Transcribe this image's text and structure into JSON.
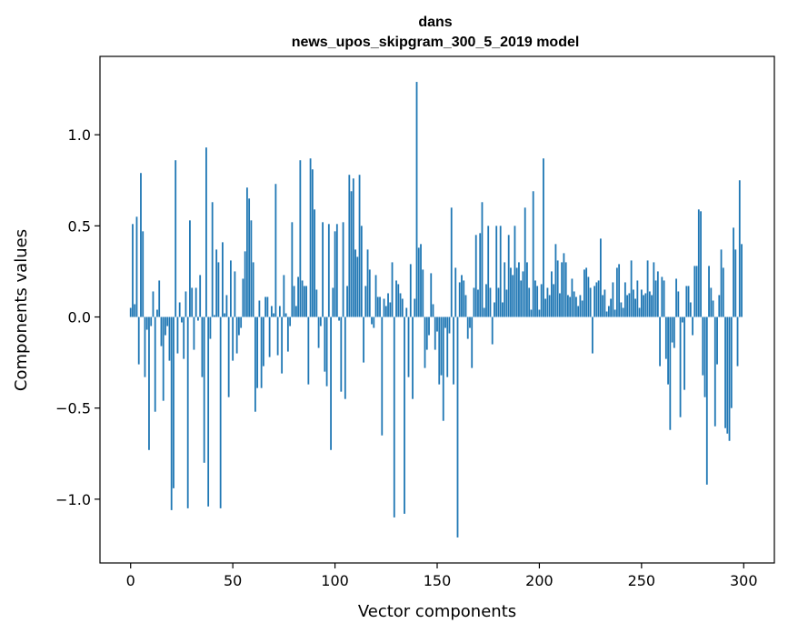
{
  "chart_data": {
    "type": "bar",
    "title": "dans",
    "subtitle": "news_upos_skipgram_300_5_2019 model",
    "xlabel": "Vector components",
    "ylabel": "Components values",
    "xlim": [
      -15,
      315
    ],
    "ylim": [
      -1.35,
      1.43
    ],
    "x_ticks": [
      0,
      50,
      100,
      150,
      200,
      250,
      300
    ],
    "x_tick_labels": [
      "0",
      "50",
      "100",
      "150",
      "200",
      "250",
      "300"
    ],
    "y_ticks": [
      -1.0,
      -0.5,
      0.0,
      0.5,
      1.0
    ],
    "y_tick_labels": [
      "−1.0",
      "−0.5",
      "0.0",
      "0.5",
      "1.0"
    ],
    "grid": false,
    "bar_color": "#1f77b4",
    "x": [
      0,
      1,
      2,
      3,
      4,
      5,
      6,
      7,
      8,
      9,
      10,
      11,
      12,
      13,
      14,
      15,
      16,
      17,
      18,
      19,
      20,
      21,
      22,
      23,
      24,
      25,
      26,
      27,
      28,
      29,
      30,
      31,
      32,
      33,
      34,
      35,
      36,
      37,
      38,
      39,
      40,
      41,
      42,
      43,
      44,
      45,
      46,
      47,
      48,
      49,
      50,
      51,
      52,
      53,
      54,
      55,
      56,
      57,
      58,
      59,
      60,
      61,
      62,
      63,
      64,
      65,
      66,
      67,
      68,
      69,
      70,
      71,
      72,
      73,
      74,
      75,
      76,
      77,
      78,
      79,
      80,
      81,
      82,
      83,
      84,
      85,
      86,
      87,
      88,
      89,
      90,
      91,
      92,
      93,
      94,
      95,
      96,
      97,
      98,
      99,
      100,
      101,
      102,
      103,
      104,
      105,
      106,
      107,
      108,
      109,
      110,
      111,
      112,
      113,
      114,
      115,
      116,
      117,
      118,
      119,
      120,
      121,
      122,
      123,
      124,
      125,
      126,
      127,
      128,
      129,
      130,
      131,
      132,
      133,
      134,
      135,
      136,
      137,
      138,
      139,
      140,
      141,
      142,
      143,
      144,
      145,
      146,
      147,
      148,
      149,
      150,
      151,
      152,
      153,
      154,
      155,
      156,
      157,
      158,
      159,
      160,
      161,
      162,
      163,
      164,
      165,
      166,
      167,
      168,
      169,
      170,
      171,
      172,
      173,
      174,
      175,
      176,
      177,
      178,
      179,
      180,
      181,
      182,
      183,
      184,
      185,
      186,
      187,
      188,
      189,
      190,
      191,
      192,
      193,
      194,
      195,
      196,
      197,
      198,
      199,
      200,
      201,
      202,
      203,
      204,
      205,
      206,
      207,
      208,
      209,
      210,
      211,
      212,
      213,
      214,
      215,
      216,
      217,
      218,
      219,
      220,
      221,
      222,
      223,
      224,
      225,
      226,
      227,
      228,
      229,
      230,
      231,
      232,
      233,
      234,
      235,
      236,
      237,
      238,
      239,
      240,
      241,
      242,
      243,
      244,
      245,
      246,
      247,
      248,
      249,
      250,
      251,
      252,
      253,
      254,
      255,
      256,
      257,
      258,
      259,
      260,
      261,
      262,
      263,
      264,
      265,
      266,
      267,
      268,
      269,
      270,
      271,
      272,
      273,
      274,
      275,
      276,
      277,
      278,
      279,
      280,
      281,
      282,
      283,
      284,
      285,
      286,
      287,
      288,
      289,
      290,
      291,
      292,
      293,
      294,
      295,
      296,
      297,
      298,
      299
    ],
    "values": [
      0.05,
      0.51,
      0.07,
      0.55,
      -0.26,
      0.79,
      0.47,
      -0.33,
      -0.07,
      -0.73,
      -0.05,
      0.14,
      -0.52,
      0.04,
      0.2,
      -0.16,
      -0.46,
      -0.1,
      -0.05,
      -0.24,
      -1.06,
      -0.94,
      0.86,
      -0.2,
      0.08,
      -0.03,
      -0.23,
      0.14,
      -1.05,
      0.53,
      0.16,
      -0.18,
      0.16,
      -0.02,
      0.23,
      -0.33,
      -0.8,
      0.93,
      -1.04,
      -0.12,
      0.63,
      0.01,
      0.37,
      0.3,
      -1.05,
      0.41,
      0.02,
      0.12,
      -0.44,
      0.31,
      -0.24,
      0.25,
      -0.2,
      -0.1,
      -0.06,
      0.21,
      0.36,
      0.71,
      0.65,
      0.53,
      0.3,
      -0.52,
      -0.39,
      0.09,
      -0.39,
      -0.27,
      0.11,
      0.11,
      -0.22,
      0.06,
      0.02,
      0.73,
      -0.21,
      0.06,
      -0.31,
      0.23,
      0.02,
      -0.19,
      -0.05,
      0.52,
      0.17,
      0.06,
      0.22,
      0.86,
      0.2,
      0.17,
      0.17,
      -0.37,
      0.87,
      0.81,
      0.59,
      0.15,
      -0.17,
      -0.05,
      0.52,
      -0.3,
      -0.38,
      0.51,
      -0.73,
      0.16,
      0.47,
      0.51,
      -0.02,
      -0.41,
      0.52,
      -0.45,
      0.17,
      0.78,
      0.69,
      0.76,
      0.37,
      0.33,
      0.78,
      0.5,
      -0.25,
      0.17,
      0.37,
      0.26,
      -0.04,
      -0.06,
      0.23,
      0.11,
      0.11,
      -0.65,
      0.1,
      0.06,
      0.13,
      0.08,
      0.3,
      -1.1,
      0.2,
      0.18,
      0.13,
      0.1,
      -1.08,
      0.05,
      -0.33,
      0.29,
      -0.45,
      0.1,
      1.29,
      0.38,
      0.4,
      0.26,
      -0.28,
      -0.18,
      -0.1,
      0.24,
      0.07,
      -0.18,
      -0.08,
      -0.37,
      -0.32,
      -0.57,
      -0.06,
      -0.33,
      -0.09,
      0.6,
      -0.37,
      0.27,
      -1.21,
      0.19,
      0.23,
      0.2,
      0.12,
      -0.12,
      -0.06,
      -0.28,
      0.16,
      0.45,
      0.15,
      0.46,
      0.63,
      0.05,
      0.18,
      0.5,
      0.16,
      -0.15,
      0.08,
      0.5,
      0.16,
      0.5,
      0.08,
      0.3,
      0.15,
      0.45,
      0.27,
      0.23,
      0.5,
      0.27,
      0.3,
      0.2,
      0.25,
      0.6,
      0.3,
      0.16,
      0.04,
      0.69,
      0.2,
      0.17,
      0.04,
      0.18,
      0.87,
      0.1,
      0.16,
      0.12,
      0.25,
      0.18,
      0.4,
      0.31,
      0.13,
      0.3,
      0.35,
      0.3,
      0.12,
      0.11,
      0.21,
      0.14,
      0.11,
      0.06,
      0.12,
      0.09,
      0.26,
      0.27,
      0.22,
      0.16,
      -0.2,
      0.17,
      0.19,
      0.2,
      0.43,
      0.12,
      0.15,
      0.03,
      0.06,
      0.1,
      0.19,
      0.04,
      0.27,
      0.29,
      0.08,
      0.05,
      0.19,
      0.12,
      0.13,
      0.31,
      0.15,
      0.1,
      0.2,
      0.05,
      0.15,
      0.12,
      0.13,
      0.31,
      0.14,
      0.12,
      0.3,
      0.2,
      0.25,
      -0.27,
      0.22,
      0.2,
      -0.23,
      -0.37,
      -0.62,
      -0.14,
      -0.17,
      0.21,
      0.14,
      -0.55,
      -0.03,
      -0.4,
      0.17,
      0.17,
      0.08,
      -0.1,
      0.28,
      0.28,
      0.59,
      0.58,
      -0.32,
      -0.44,
      -0.92,
      0.28,
      0.16,
      0.09,
      -0.6,
      -0.26,
      0.12,
      0.37,
      0.27,
      -0.61,
      -0.64,
      -0.68,
      -0.5,
      0.49,
      0.37,
      -0.27,
      0.75,
      0.4
    ]
  }
}
